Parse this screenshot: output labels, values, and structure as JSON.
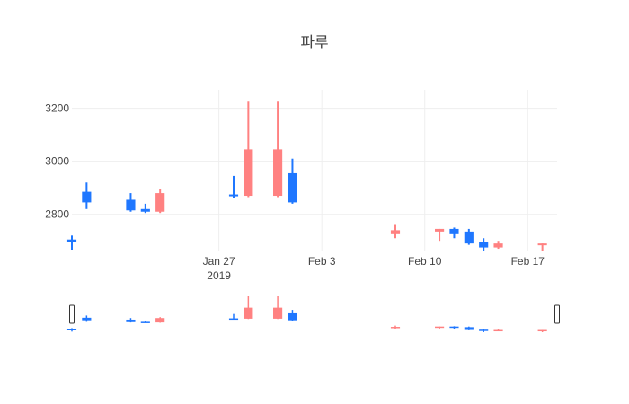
{
  "chart_data": {
    "type": "candlestick",
    "title": "파루",
    "year_label": "2019",
    "xlabel": "",
    "ylabel": "",
    "ylim": [
      2660,
      3270
    ],
    "xlim": [
      "2019-01-17",
      "2019-02-19"
    ],
    "y_ticks": [
      2800,
      3000,
      3200
    ],
    "x_ticks": [
      {
        "date": "2019-01-27",
        "label": "Jan 27"
      },
      {
        "date": "2019-02-03",
        "label": "Feb 3"
      },
      {
        "date": "2019-02-10",
        "label": "Feb 10"
      },
      {
        "date": "2019-02-17",
        "label": "Feb 17"
      }
    ],
    "increasing_color": "#ff8181",
    "decreasing_color": "#1f77ff",
    "grid": true,
    "rangeslider": true,
    "candles": [
      {
        "date": "2019-01-17",
        "open": 2705,
        "high": 2720,
        "low": 2665,
        "close": 2695
      },
      {
        "date": "2019-01-18",
        "open": 2885,
        "high": 2920,
        "low": 2820,
        "close": 2845
      },
      {
        "date": "2019-01-21",
        "open": 2855,
        "high": 2880,
        "low": 2810,
        "close": 2815
      },
      {
        "date": "2019-01-22",
        "open": 2820,
        "high": 2840,
        "low": 2805,
        "close": 2810
      },
      {
        "date": "2019-01-23",
        "open": 2810,
        "high": 2895,
        "low": 2805,
        "close": 2880
      },
      {
        "date": "2019-01-28",
        "open": 2875,
        "high": 2945,
        "low": 2860,
        "close": 2870
      },
      {
        "date": "2019-01-29",
        "open": 2870,
        "high": 3225,
        "low": 2865,
        "close": 3045
      },
      {
        "date": "2019-01-31",
        "open": 2870,
        "high": 3225,
        "low": 2865,
        "close": 3045
      },
      {
        "date": "2019-02-01",
        "open": 2955,
        "high": 3010,
        "low": 2840,
        "close": 2845
      },
      {
        "date": "2019-02-08",
        "open": 2725,
        "high": 2760,
        "low": 2710,
        "close": 2740
      },
      {
        "date": "2019-02-11",
        "open": 2735,
        "high": 2745,
        "low": 2700,
        "close": 2745
      },
      {
        "date": "2019-02-12",
        "open": 2745,
        "high": 2750,
        "low": 2710,
        "close": 2725
      },
      {
        "date": "2019-02-13",
        "open": 2735,
        "high": 2745,
        "low": 2685,
        "close": 2690
      },
      {
        "date": "2019-02-14",
        "open": 2695,
        "high": 2710,
        "low": 2655,
        "close": 2675
      },
      {
        "date": "2019-02-15",
        "open": 2675,
        "high": 2700,
        "low": 2670,
        "close": 2690
      },
      {
        "date": "2019-02-18",
        "open": 2685,
        "high": 2690,
        "low": 2655,
        "close": 2690
      }
    ]
  }
}
